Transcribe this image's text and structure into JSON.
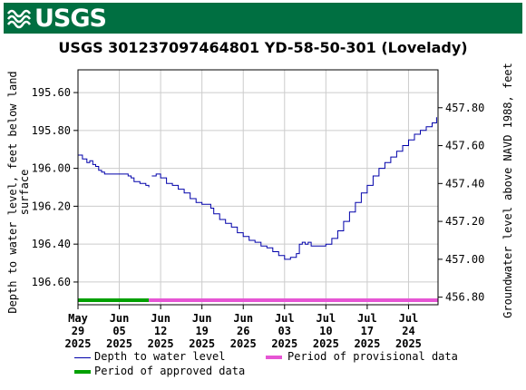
{
  "banner": {
    "logo_text": "USGS"
  },
  "chart_data": {
    "type": "line",
    "title": "USGS 301237097464801 YD-58-50-301 (Lovelady)",
    "ylabel_left": [
      "Depth to water level, feet below land",
      "surface"
    ],
    "ylabel_right": "Groundwater level above NAVD 1988, feet",
    "ylim_left": [
      196.72,
      195.48
    ],
    "left_axis_inverted": true,
    "yticks_left": [
      "195.60",
      "195.80",
      "196.00",
      "196.20",
      "196.40",
      "196.60"
    ],
    "ylim_right": [
      456.76,
      458.0
    ],
    "yticks_right": [
      "457.80",
      "457.60",
      "457.40",
      "457.20",
      "457.00",
      "456.80"
    ],
    "x_start": "2025-05-29",
    "x_end": "2025-07-29",
    "xticks": [
      {
        "date": "2025-05-29",
        "month": "May",
        "day": "29",
        "year": "2025"
      },
      {
        "date": "2025-06-05",
        "month": "Jun",
        "day": "05",
        "year": "2025"
      },
      {
        "date": "2025-06-12",
        "month": "Jun",
        "day": "12",
        "year": "2025"
      },
      {
        "date": "2025-06-19",
        "month": "Jun",
        "day": "19",
        "year": "2025"
      },
      {
        "date": "2025-06-26",
        "month": "Jun",
        "day": "26",
        "year": "2025"
      },
      {
        "date": "2025-07-03",
        "month": "Jul",
        "day": "03",
        "year": "2025"
      },
      {
        "date": "2025-07-10",
        "month": "Jul",
        "day": "10",
        "year": "2025"
      },
      {
        "date": "2025-07-17",
        "month": "Jul",
        "day": "17",
        "year": "2025"
      },
      {
        "date": "2025-07-24",
        "month": "Jul",
        "day": "24",
        "year": "2025"
      }
    ],
    "grid": true,
    "series": [
      {
        "name": "Depth to water level",
        "color": "#0000aa",
        "segments": [
          [
            [
              "2025-05-29T00:00",
              195.93
            ],
            [
              "2025-05-29T18:00",
              195.95
            ],
            [
              "2025-05-30T12:00",
              195.97
            ],
            [
              "2025-05-31T00:00",
              195.96
            ],
            [
              "2025-05-31T12:00",
              195.98
            ],
            [
              "2025-06-01T00:00",
              195.99
            ],
            [
              "2025-06-01T12:00",
              196.01
            ],
            [
              "2025-06-02T00:00",
              196.02
            ],
            [
              "2025-06-02T12:00",
              196.03
            ],
            [
              "2025-06-05T12:00",
              196.03
            ],
            [
              "2025-06-06T12:00",
              196.04
            ],
            [
              "2025-06-07T00:00",
              196.05
            ],
            [
              "2025-06-07T12:00",
              196.07
            ],
            [
              "2025-06-08T12:00",
              196.08
            ],
            [
              "2025-06-09T12:00",
              196.09
            ],
            [
              "2025-06-10T00:00",
              196.1
            ]
          ],
          [
            [
              "2025-06-10T12:00",
              196.04
            ],
            [
              "2025-06-11T06:00",
              196.03
            ],
            [
              "2025-06-12T00:00",
              196.05
            ],
            [
              "2025-06-13T00:00",
              196.08
            ],
            [
              "2025-06-14T00:00",
              196.09
            ],
            [
              "2025-06-15T00:00",
              196.11
            ],
            [
              "2025-06-16T00:00",
              196.13
            ],
            [
              "2025-06-17T00:00",
              196.16
            ],
            [
              "2025-06-18T00:00",
              196.18
            ],
            [
              "2025-06-19T00:00",
              196.19
            ],
            [
              "2025-06-19T18:00",
              196.19
            ],
            [
              "2025-06-20T12:00",
              196.21
            ],
            [
              "2025-06-21T00:00",
              196.24
            ],
            [
              "2025-06-22T00:00",
              196.27
            ],
            [
              "2025-06-23T00:00",
              196.29
            ],
            [
              "2025-06-24T00:00",
              196.31
            ],
            [
              "2025-06-25T00:00",
              196.34
            ],
            [
              "2025-06-26T00:00",
              196.36
            ],
            [
              "2025-06-27T00:00",
              196.38
            ],
            [
              "2025-06-28T00:00",
              196.39
            ],
            [
              "2025-06-29T00:00",
              196.41
            ],
            [
              "2025-06-30T00:00",
              196.42
            ],
            [
              "2025-07-01T00:00",
              196.44
            ],
            [
              "2025-07-02T00:00",
              196.46
            ],
            [
              "2025-07-03T00:00",
              196.48
            ],
            [
              "2025-07-04T00:00",
              196.47
            ],
            [
              "2025-07-05T00:00",
              196.45
            ],
            [
              "2025-07-05T12:00",
              196.4
            ],
            [
              "2025-07-06T00:00",
              196.39
            ],
            [
              "2025-07-06T12:00",
              196.4
            ],
            [
              "2025-07-07T00:00",
              196.39
            ],
            [
              "2025-07-07T12:00",
              196.41
            ],
            [
              "2025-07-08T12:00",
              196.41
            ],
            [
              "2025-07-09T12:00",
              196.41
            ],
            [
              "2025-07-10T00:00",
              196.4
            ],
            [
              "2025-07-11T00:00",
              196.37
            ],
            [
              "2025-07-12T00:00",
              196.33
            ],
            [
              "2025-07-13T00:00",
              196.28
            ],
            [
              "2025-07-14T00:00",
              196.23
            ],
            [
              "2025-07-15T00:00",
              196.18
            ],
            [
              "2025-07-16T00:00",
              196.13
            ],
            [
              "2025-07-17T00:00",
              196.09
            ],
            [
              "2025-07-18T00:00",
              196.04
            ],
            [
              "2025-07-19T00:00",
              196.0
            ],
            [
              "2025-07-20T00:00",
              195.97
            ],
            [
              "2025-07-21T00:00",
              195.94
            ],
            [
              "2025-07-22T00:00",
              195.91
            ],
            [
              "2025-07-23T00:00",
              195.88
            ],
            [
              "2025-07-24T00:00",
              195.85
            ],
            [
              "2025-07-25T00:00",
              195.82
            ],
            [
              "2025-07-26T00:00",
              195.8
            ],
            [
              "2025-07-27T00:00",
              195.78
            ],
            [
              "2025-07-28T00:00",
              195.76
            ],
            [
              "2025-07-28T18:00",
              195.73
            ]
          ]
        ]
      }
    ],
    "status_bars": [
      {
        "name": "Period of approved data",
        "color": "#00a000",
        "start": "2025-05-29",
        "end": "2025-06-10"
      },
      {
        "name": "Period of provisional data",
        "color": "#e655d4",
        "start": "2025-06-10",
        "end": "2025-07-29"
      }
    ],
    "legend": [
      {
        "label": "Depth to water level",
        "color": "#0000aa",
        "kind": "line"
      },
      {
        "label": "Period of provisional data",
        "color": "#e655d4",
        "kind": "bar"
      },
      {
        "label": "Period of approved data",
        "color": "#00a000",
        "kind": "bar"
      }
    ]
  }
}
